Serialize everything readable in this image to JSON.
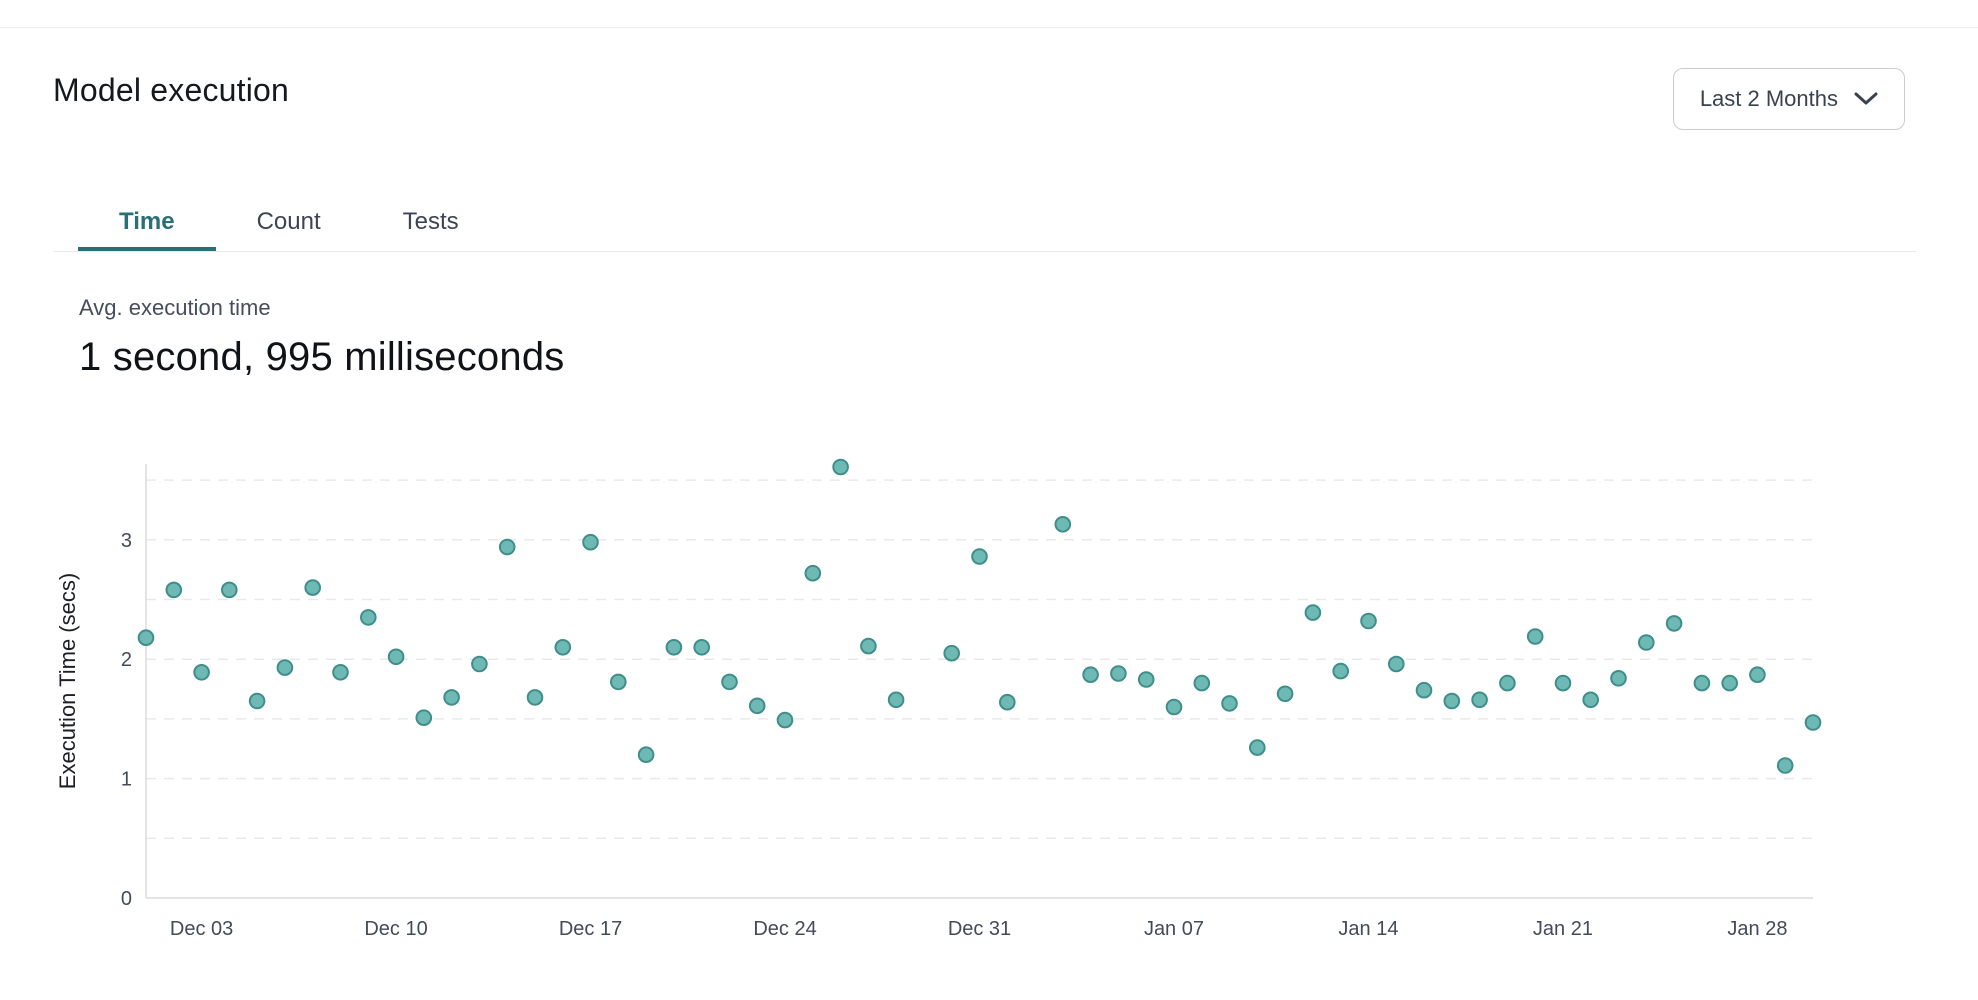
{
  "page": {
    "title": "Model execution"
  },
  "filter": {
    "label": "Last 2 Months",
    "icon": "chevron-down-icon"
  },
  "tabs": [
    {
      "label": "Time",
      "active": true
    },
    {
      "label": "Count",
      "active": false
    },
    {
      "label": "Tests",
      "active": false
    }
  ],
  "summary": {
    "label": "Avg. execution time",
    "value": "1 second, 995 milliseconds"
  },
  "chart_data": {
    "type": "scatter",
    "title": "",
    "xlabel": "",
    "ylabel": "Execution Time (secs)",
    "ylim": [
      0,
      3.65
    ],
    "yticks": [
      0,
      1,
      2,
      3
    ],
    "grid": "dashed horizontal every 0.5",
    "legend": "none",
    "x_tick_labels": [
      "Dec 03",
      "Dec 10",
      "Dec 17",
      "Dec 24",
      "Dec 31",
      "Jan 07",
      "Jan 14",
      "Jan 21",
      "Jan 28"
    ],
    "points": [
      {
        "date": "Dec 01",
        "secs": 2.18
      },
      {
        "date": "Dec 02",
        "secs": 2.58
      },
      {
        "date": "Dec 03",
        "secs": 1.89
      },
      {
        "date": "Dec 04",
        "secs": 2.58
      },
      {
        "date": "Dec 05",
        "secs": 1.65
      },
      {
        "date": "Dec 06",
        "secs": 1.93
      },
      {
        "date": "Dec 07",
        "secs": 2.6
      },
      {
        "date": "Dec 08",
        "secs": 1.89
      },
      {
        "date": "Dec 09",
        "secs": 2.35
      },
      {
        "date": "Dec 10",
        "secs": 2.02
      },
      {
        "date": "Dec 11",
        "secs": 1.51
      },
      {
        "date": "Dec 12",
        "secs": 1.68
      },
      {
        "date": "Dec 13",
        "secs": 1.96
      },
      {
        "date": "Dec 14",
        "secs": 2.94
      },
      {
        "date": "Dec 15",
        "secs": 1.68
      },
      {
        "date": "Dec 16",
        "secs": 2.1
      },
      {
        "date": "Dec 17",
        "secs": 2.98
      },
      {
        "date": "Dec 18",
        "secs": 1.81
      },
      {
        "date": "Dec 19",
        "secs": 1.2
      },
      {
        "date": "Dec 20",
        "secs": 2.1
      },
      {
        "date": "Dec 21",
        "secs": 2.1
      },
      {
        "date": "Dec 22",
        "secs": 1.81
      },
      {
        "date": "Dec 23",
        "secs": 1.61
      },
      {
        "date": "Dec 24",
        "secs": 1.49
      },
      {
        "date": "Dec 25",
        "secs": 2.72
      },
      {
        "date": "Dec 26",
        "secs": 3.61
      },
      {
        "date": "Dec 27",
        "secs": 2.11
      },
      {
        "date": "Dec 28",
        "secs": 1.66
      },
      {
        "date": "Dec 30",
        "secs": 2.05
      },
      {
        "date": "Dec 31",
        "secs": 2.86
      },
      {
        "date": "Jan 01",
        "secs": 1.64
      },
      {
        "date": "Jan 03",
        "secs": 3.13
      },
      {
        "date": "Jan 04",
        "secs": 1.87
      },
      {
        "date": "Jan 05",
        "secs": 1.88
      },
      {
        "date": "Jan 06",
        "secs": 1.83
      },
      {
        "date": "Jan 07",
        "secs": 1.6
      },
      {
        "date": "Jan 08",
        "secs": 1.8
      },
      {
        "date": "Jan 09",
        "secs": 1.63
      },
      {
        "date": "Jan 10",
        "secs": 1.26
      },
      {
        "date": "Jan 11",
        "secs": 1.71
      },
      {
        "date": "Jan 12",
        "secs": 2.39
      },
      {
        "date": "Jan 13",
        "secs": 1.9
      },
      {
        "date": "Jan 14",
        "secs": 2.32
      },
      {
        "date": "Jan 15",
        "secs": 1.96
      },
      {
        "date": "Jan 16",
        "secs": 1.74
      },
      {
        "date": "Jan 17",
        "secs": 1.65
      },
      {
        "date": "Jan 18",
        "secs": 1.66
      },
      {
        "date": "Jan 19",
        "secs": 1.8
      },
      {
        "date": "Jan 20",
        "secs": 2.19
      },
      {
        "date": "Jan 21",
        "secs": 1.8
      },
      {
        "date": "Jan 22",
        "secs": 1.66
      },
      {
        "date": "Jan 23",
        "secs": 1.84
      },
      {
        "date": "Jan 24",
        "secs": 2.14
      },
      {
        "date": "Jan 25",
        "secs": 2.3
      },
      {
        "date": "Jan 26",
        "secs": 1.8
      },
      {
        "date": "Jan 27",
        "secs": 1.8
      },
      {
        "date": "Jan 28",
        "secs": 1.87
      },
      {
        "date": "Jan 29",
        "secs": 1.11
      },
      {
        "date": "Jan 30",
        "secs": 1.47
      }
    ]
  },
  "colors": {
    "point_fill": "#6fb9b5",
    "point_stroke": "#3f8e8a",
    "tab_accent": "#2a6f75",
    "grid_line": "#e8e9ed",
    "axis_line": "#d9dbe0",
    "tick_text": "#434b59",
    "axis_label_text": "#1c1f26"
  }
}
